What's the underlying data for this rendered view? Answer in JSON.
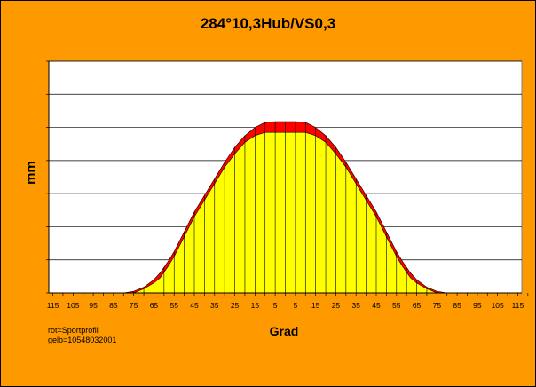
{
  "chart_data": {
    "type": "area",
    "title": "284°10,3Hub/VS0,3",
    "xlabel": "Grad",
    "ylabel": "mm",
    "x_ticks": [
      "115",
      "105",
      "95",
      "85",
      "75",
      "65",
      "55",
      "45",
      "35",
      "25",
      "15",
      "5",
      "5",
      "15",
      "25",
      "35",
      "45",
      "55",
      "65",
      "75",
      "85",
      "95",
      "105",
      "115"
    ],
    "xlim": [
      -117,
      117
    ],
    "ylim": [
      0,
      14
    ],
    "grid": true,
    "series": [
      {
        "name": "rot=Sportprofil",
        "color": "#ff0000",
        "x": [
          -80,
          -75,
          -70,
          -65,
          -62,
          -58,
          -55,
          -50,
          -45,
          -40,
          -35,
          -30,
          -25,
          -20,
          -15,
          -10,
          -5,
          0,
          5,
          10,
          15,
          20,
          25,
          30,
          35,
          40,
          45,
          50,
          55,
          58,
          62,
          65,
          70,
          75,
          80
        ],
        "values": [
          0,
          0.1,
          0.35,
          0.8,
          1.2,
          1.9,
          2.5,
          3.7,
          4.9,
          5.9,
          6.9,
          7.9,
          8.8,
          9.5,
          10.0,
          10.3,
          10.35,
          10.35,
          10.35,
          10.3,
          10.0,
          9.5,
          8.8,
          7.9,
          6.9,
          5.9,
          4.9,
          3.7,
          2.5,
          1.9,
          1.2,
          0.8,
          0.35,
          0.1,
          0
        ]
      },
      {
        "name": "gelb=10548032001",
        "color": "#ffff00",
        "x": [
          -75,
          -70,
          -65,
          -62,
          -58,
          -55,
          -50,
          -45,
          -40,
          -35,
          -30,
          -25,
          -20,
          -15,
          -10,
          -5,
          0,
          5,
          10,
          15,
          20,
          25,
          30,
          35,
          40,
          45,
          50,
          55,
          58,
          62,
          65,
          70,
          75
        ],
        "values": [
          0,
          0.25,
          0.6,
          0.9,
          1.6,
          2.2,
          3.4,
          4.6,
          5.6,
          6.6,
          7.6,
          8.4,
          9.1,
          9.5,
          9.7,
          9.7,
          9.7,
          9.7,
          9.7,
          9.5,
          9.1,
          8.4,
          7.6,
          6.6,
          5.6,
          4.6,
          3.4,
          2.2,
          1.6,
          0.9,
          0.6,
          0.25,
          0
        ]
      }
    ],
    "note_lines": [
      "rot=Sportprofil",
      "gelb=10548032001"
    ]
  }
}
